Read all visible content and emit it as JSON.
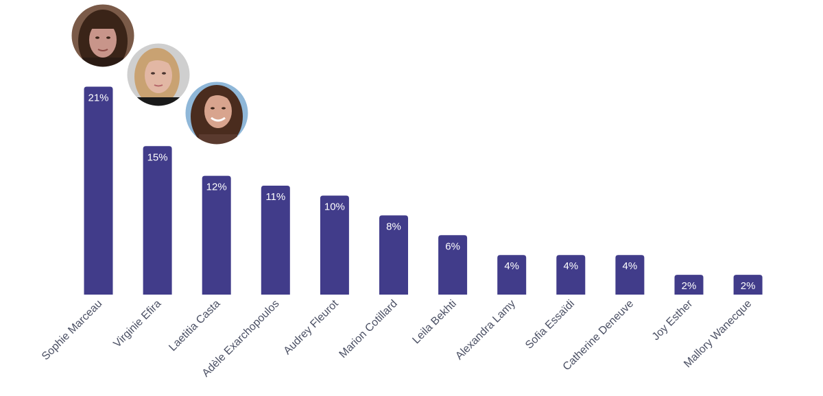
{
  "chart_data": {
    "type": "bar",
    "categories": [
      "Sophie Marceau",
      "Virginie Efira",
      "Laetitia Casta",
      "Adèle Exarchopoulos",
      "Audrey Fleurot",
      "Marion Cotillard",
      "Leila Bekhti",
      "Alexandra Lamy",
      "Sofia Essaïdi",
      "Catherine Deneuve",
      "Joy Esther",
      "Mallory Wanecque"
    ],
    "values": [
      21,
      15,
      12,
      11,
      10,
      8,
      6,
      4,
      4,
      4,
      2,
      2
    ],
    "data_labels": [
      "21%",
      "15%",
      "12%",
      "11%",
      "10%",
      "8%",
      "6%",
      "4%",
      "4%",
      "4%",
      "2%",
      "2%"
    ],
    "unit": "%",
    "bar_color": "#413c8a",
    "label_color": "#ffffff",
    "category_label_color": "#4a4f63",
    "grid": false,
    "legend": "none",
    "portraits": [
      {
        "category": "Sophie Marceau",
        "subject": "photo of a woman with dark bangs",
        "colors": {
          "skin": "#c8958a",
          "hair": "#3a2418",
          "bg": "#7a5a48"
        }
      },
      {
        "category": "Virginie Efira",
        "subject": "photo of a blonde woman",
        "colors": {
          "skin": "#e2b7a4",
          "hair": "#c9a272",
          "bg": "#cfcfcf"
        }
      },
      {
        "category": "Laetitia Casta",
        "subject": "photo of a smiling woman with dark hair",
        "colors": {
          "skin": "#d8a48e",
          "hair": "#4a2c1e",
          "bg": "#8fb7d8"
        }
      }
    ]
  }
}
